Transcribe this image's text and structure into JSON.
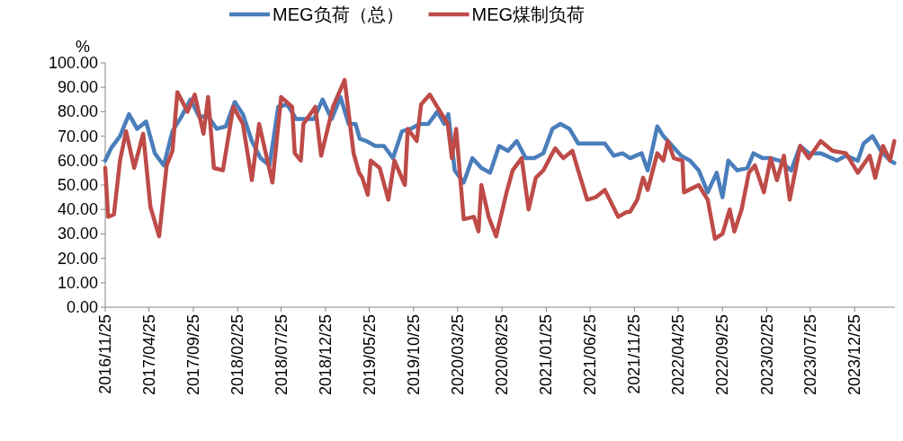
{
  "chart_data": {
    "type": "line",
    "ylabel": "%",
    "legend": "top",
    "grid": false,
    "marker": "none",
    "line_style": "solid",
    "xlim": [
      "2016-11-25",
      "2024-05-12"
    ],
    "ylim": [
      0,
      100
    ],
    "xticks": [
      {
        "value": "2016-11-25",
        "label": "2016/11/25"
      },
      {
        "value": "2017-04-25",
        "label": "2017/04/25"
      },
      {
        "value": "2017-09-25",
        "label": "2017/09/25"
      },
      {
        "value": "2018-02-25",
        "label": "2018/02/25"
      },
      {
        "value": "2018-07-25",
        "label": "2018/07/25"
      },
      {
        "value": "2018-12-25",
        "label": "2018/12/25"
      },
      {
        "value": "2019-05-25",
        "label": "2019/05/25"
      },
      {
        "value": "2019-10-25",
        "label": "2019/10/25"
      },
      {
        "value": "2020-03-25",
        "label": "2020/03/25"
      },
      {
        "value": "2020-08-25",
        "label": "2020/08/25"
      },
      {
        "value": "2021-01-25",
        "label": "2021/01/25"
      },
      {
        "value": "2021-06-25",
        "label": "2021/06/25"
      },
      {
        "value": "2021-11-25",
        "label": "2021/11/25"
      },
      {
        "value": "2022-04-25",
        "label": "2022/04/25"
      },
      {
        "value": "2022-09-25",
        "label": "2022/09/25"
      },
      {
        "value": "2023-02-25",
        "label": "2023/02/25"
      },
      {
        "value": "2023-07-25",
        "label": "2023/07/25"
      },
      {
        "value": "2023-12-25",
        "label": "2023/12/25"
      }
    ],
    "yticks": [
      {
        "value": 0,
        "label": "0.00"
      },
      {
        "value": 10,
        "label": "10.00"
      },
      {
        "value": 20,
        "label": "20.00"
      },
      {
        "value": 30,
        "label": "30.00"
      },
      {
        "value": 40,
        "label": "40.00"
      },
      {
        "value": 50,
        "label": "50.00"
      },
      {
        "value": 60,
        "label": "60.00"
      },
      {
        "value": 70,
        "label": "70.00"
      },
      {
        "value": 80,
        "label": "80.00"
      },
      {
        "value": 90,
        "label": "90.00"
      },
      {
        "value": 100,
        "label": "100.00"
      }
    ],
    "series": [
      {
        "name": "MEG负荷（总）",
        "color": "#4a7ebb",
        "x": [
          "2016-11-25",
          "2016-12-15",
          "2017-01-15",
          "2017-02-15",
          "2017-03-15",
          "2017-04-15",
          "2017-05-15",
          "2017-06-15",
          "2017-07-15",
          "2017-08-15",
          "2017-09-15",
          "2017-10-15",
          "2017-11-15",
          "2017-12-15",
          "2018-01-15",
          "2018-02-15",
          "2018-03-15",
          "2018-04-15",
          "2018-05-15",
          "2018-06-15",
          "2018-07-15",
          "2018-08-15",
          "2018-09-15",
          "2018-10-15",
          "2018-11-15",
          "2018-12-15",
          "2019-01-15",
          "2019-02-15",
          "2019-03-15",
          "2019-04-08",
          "2019-04-22",
          "2019-05-15",
          "2019-06-15",
          "2019-07-15",
          "2019-08-15",
          "2019-09-15",
          "2019-10-15",
          "2019-11-15",
          "2019-12-15",
          "2020-01-15",
          "2020-02-08",
          "2020-02-22",
          "2020-03-15",
          "2020-04-15",
          "2020-05-15",
          "2020-06-15",
          "2020-07-15",
          "2020-08-15",
          "2020-09-15",
          "2020-10-15",
          "2020-11-15",
          "2020-12-15",
          "2021-01-15",
          "2021-02-15",
          "2021-03-15",
          "2021-04-15",
          "2021-05-15",
          "2021-06-15",
          "2021-07-15",
          "2021-08-15",
          "2021-09-15",
          "2021-10-15",
          "2021-11-10",
          "2021-12-20",
          "2022-01-10",
          "2022-02-12",
          "2022-03-05",
          "2022-04-05",
          "2022-05-05",
          "2022-06-05",
          "2022-07-05",
          "2022-08-05",
          "2022-09-05",
          "2022-09-25",
          "2022-10-15",
          "2022-11-15",
          "2022-12-20",
          "2023-01-10",
          "2023-02-10",
          "2023-03-10",
          "2023-04-10",
          "2023-05-20",
          "2023-06-20",
          "2023-07-20",
          "2023-08-30",
          "2023-10-25",
          "2023-11-25",
          "2024-01-05",
          "2024-01-25",
          "2024-02-25",
          "2024-03-25",
          "2024-04-25",
          "2024-05-10"
        ],
        "values": [
          60,
          65,
          70,
          79,
          73,
          76,
          63,
          58,
          72,
          78,
          85,
          78,
          78,
          73,
          74,
          84,
          79,
          68,
          61,
          58,
          82,
          83,
          77,
          77,
          77,
          85,
          77,
          86,
          75,
          75,
          69,
          68,
          66,
          66,
          61,
          72,
          73,
          75,
          75,
          80,
          75,
          79,
          56,
          51,
          61,
          57,
          55,
          66,
          64,
          68,
          61,
          61,
          63,
          73,
          75,
          73,
          67,
          67,
          67,
          67,
          62,
          63,
          61,
          63,
          56,
          74,
          70,
          66,
          62,
          60,
          56,
          47,
          55,
          45,
          60,
          56,
          57,
          63,
          61,
          61,
          60,
          56,
          66,
          63,
          63,
          60,
          62,
          60,
          67,
          70,
          64,
          60,
          59
        ]
      },
      {
        "name": "MEG煤制负荷",
        "color": "#be4b48",
        "x": [
          "2016-11-25",
          "2016-12-05",
          "2016-12-25",
          "2017-01-15",
          "2017-02-05",
          "2017-03-05",
          "2017-04-05",
          "2017-04-30",
          "2017-05-30",
          "2017-06-25",
          "2017-07-15",
          "2017-08-01",
          "2017-09-05",
          "2017-09-30",
          "2017-10-30",
          "2017-11-15",
          "2017-12-05",
          "2018-01-05",
          "2018-02-10",
          "2018-03-15",
          "2018-04-15",
          "2018-05-10",
          "2018-06-25",
          "2018-07-25",
          "2018-09-01",
          "2018-09-10",
          "2018-10-01",
          "2018-10-10",
          "2018-11-20",
          "2018-12-10",
          "2019-01-20",
          "2019-03-01",
          "2019-04-01",
          "2019-04-20",
          "2019-05-01",
          "2019-05-20",
          "2019-05-30",
          "2019-06-30",
          "2019-07-30",
          "2019-08-20",
          "2019-09-25",
          "2019-10-05",
          "2019-11-05",
          "2019-11-20",
          "2019-12-20",
          "2020-02-20",
          "2020-03-05",
          "2020-03-20",
          "2020-04-15",
          "2020-05-20",
          "2020-06-05",
          "2020-06-15",
          "2020-07-10",
          "2020-08-05",
          "2020-09-10",
          "2020-10-01",
          "2020-11-01",
          "2020-11-25",
          "2020-12-20",
          "2021-01-15",
          "2021-02-15",
          "2021-02-25",
          "2021-03-25",
          "2021-04-25",
          "2021-05-15",
          "2021-06-15",
          "2021-07-15",
          "2021-08-15",
          "2021-09-30",
          "2021-10-30",
          "2021-11-10",
          "2021-12-05",
          "2021-12-25",
          "2022-01-10",
          "2022-02-12",
          "2022-03-05",
          "2022-03-20",
          "2022-04-10",
          "2022-05-10",
          "2022-05-15",
          "2022-07-05",
          "2022-08-05",
          "2022-08-30",
          "2022-09-25",
          "2022-10-20",
          "2022-11-05",
          "2022-11-30",
          "2022-12-25",
          "2023-01-15",
          "2023-02-15",
          "2023-03-10",
          "2023-04-01",
          "2023-04-25",
          "2023-05-15",
          "2023-06-20",
          "2023-07-20",
          "2023-08-30",
          "2023-10-10",
          "2023-11-25",
          "2024-01-05",
          "2024-02-15",
          "2024-03-05",
          "2024-04-01",
          "2024-04-25",
          "2024-05-10"
        ],
        "values": [
          57,
          37,
          38,
          60,
          72,
          57,
          71,
          41,
          29,
          58,
          64,
          88,
          80,
          87,
          71,
          86,
          57,
          56,
          82,
          75,
          52,
          75,
          51,
          86,
          82,
          63,
          60,
          75,
          82,
          62,
          82,
          93,
          63,
          55,
          53,
          46,
          60,
          57,
          44,
          60,
          50,
          73,
          68,
          83,
          87,
          75,
          61,
          73,
          36,
          37,
          31,
          50,
          37,
          29,
          47,
          56,
          61,
          40,
          53,
          56,
          63,
          65,
          61,
          64,
          56,
          44,
          45,
          48,
          37,
          39,
          39,
          44,
          53,
          48,
          63,
          60,
          68,
          61,
          60,
          47,
          50,
          44,
          28,
          30,
          40,
          31,
          40,
          55,
          58,
          47,
          61,
          52,
          62,
          44,
          66,
          61,
          68,
          64,
          63,
          55,
          62,
          53,
          66,
          60,
          68
        ]
      }
    ]
  }
}
